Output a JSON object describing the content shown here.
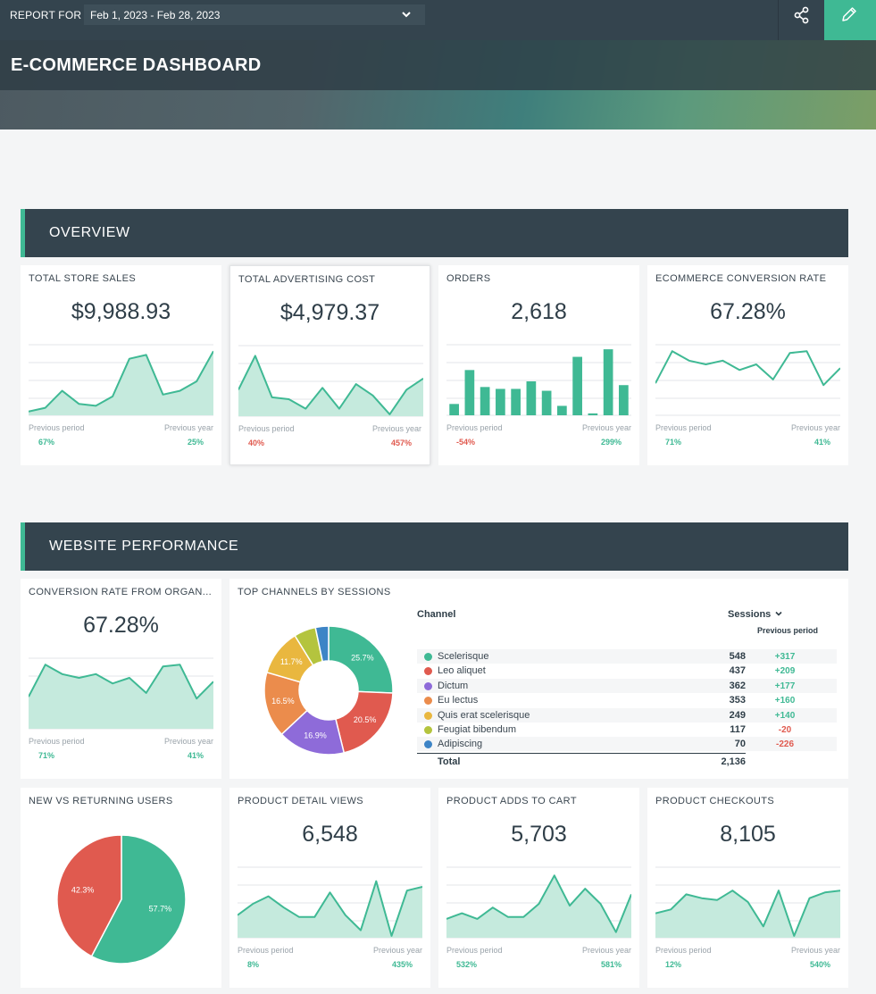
{
  "header": {
    "report_for_label": "REPORT FOR",
    "date_range": "Feb 1, 2023 - Feb 28, 2023",
    "dashboard_title": "E-COMMERCE DASHBOARD",
    "accent_color": "#3fb994",
    "header_bg_color": "#34444e"
  },
  "labels": {
    "previous_period": "Previous period",
    "previous_year": "Previous year"
  },
  "colors": {
    "positive": "#3fb994",
    "negative": "#e05a4f",
    "sparkline_fill": "#c5eadd",
    "sparkline_line": "#3fb994"
  },
  "sections": {
    "overview": "OVERVIEW",
    "website_performance": "WEBSITE PERFORMANCE"
  },
  "kpis": {
    "total_store_sales": {
      "title": "TOTAL STORE SALES",
      "value": "$9,988.93",
      "prev_period": "67%",
      "prev_year": "25%",
      "prev_period_trend": "positive",
      "prev_year_trend": "positive",
      "chart_data": {
        "type": "area",
        "values": [
          2,
          4,
          13,
          6,
          5,
          10,
          30,
          32,
          11,
          13,
          18,
          34
        ]
      }
    },
    "total_advertising_cost": {
      "title": "TOTAL ADVERTISING COST",
      "value": "$4,979.37",
      "prev_period": "40%",
      "prev_year": "457%",
      "prev_period_trend": "negative",
      "prev_year_trend": "negative",
      "chart_data": {
        "type": "area",
        "values": [
          14,
          32,
          10,
          9,
          4,
          15,
          4,
          17,
          11,
          1,
          14,
          20
        ]
      }
    },
    "orders": {
      "title": "ORDERS",
      "value": "2,618",
      "prev_period": "-54%",
      "prev_year": "299%",
      "prev_period_trend": "negative",
      "prev_year_trend": "positive",
      "chart_data": {
        "type": "bar",
        "values": [
          6,
          24,
          15,
          14,
          14,
          18,
          13,
          5,
          31,
          1,
          35,
          16
        ]
      }
    },
    "ecommerce_conversion_rate": {
      "title": "ECOMMERCE CONVERSION RATE",
      "value": "67.28%",
      "prev_period": "71%",
      "prev_year": "41%",
      "prev_period_trend": "positive",
      "prev_year_trend": "positive",
      "chart_data": {
        "type": "line",
        "values": [
          17,
          34,
          29,
          27,
          29,
          24,
          27,
          19,
          33,
          34,
          16,
          25
        ]
      }
    },
    "conversion_rate_organic": {
      "title": "CONVERSION RATE FROM ORGAN...",
      "value": "67.28%",
      "prev_period": "71%",
      "prev_year": "41%",
      "prev_period_trend": "positive",
      "prev_year_trend": "positive",
      "chart_data": {
        "type": "area",
        "values": [
          17,
          34,
          29,
          27,
          29,
          24,
          27,
          19,
          33,
          34,
          16,
          25
        ]
      }
    },
    "product_detail_views": {
      "title": "PRODUCT DETAIL VIEWS",
      "value": "6,548",
      "prev_period": "8%",
      "prev_year": "435%",
      "prev_period_trend": "positive",
      "prev_year_trend": "positive",
      "chart_data": {
        "type": "area",
        "values": [
          12,
          18,
          22,
          16,
          11,
          11,
          24,
          12,
          4,
          30,
          1,
          25,
          27
        ]
      }
    },
    "product_adds_to_cart": {
      "title": "PRODUCT ADDS TO CART",
      "value": "5,703",
      "prev_period": "532%",
      "prev_year": "581%",
      "prev_period_trend": "positive",
      "prev_year_trend": "positive",
      "chart_data": {
        "type": "area",
        "values": [
          10,
          13,
          10,
          16,
          11,
          11,
          18,
          33,
          17,
          26,
          18,
          3,
          23
        ]
      }
    },
    "product_checkouts": {
      "title": "PRODUCT CHECKOUTS",
      "value": "8,105",
      "prev_period": "12%",
      "prev_year": "540%",
      "prev_period_trend": "positive",
      "prev_year_trend": "positive",
      "chart_data": {
        "type": "area",
        "values": [
          13,
          15,
          23,
          21,
          20,
          25,
          19,
          6,
          25,
          1,
          21,
          24,
          25
        ]
      }
    }
  },
  "top_channels": {
    "title": "TOP CHANNELS BY SESSIONS",
    "col_channel": "Channel",
    "col_sessions": "Sessions",
    "col_previous_period": "Previous period",
    "total_label": "Total",
    "total": "2,136",
    "rows": [
      {
        "name": "Scelerisque",
        "sessions": "548",
        "prev": "+317",
        "trend": "positive",
        "color": "#3fb994"
      },
      {
        "name": "Leo aliquet",
        "sessions": "437",
        "prev": "+209",
        "trend": "positive",
        "color": "#e05a4f"
      },
      {
        "name": "Dictum",
        "sessions": "362",
        "prev": "+177",
        "trend": "positive",
        "color": "#8e6bd9"
      },
      {
        "name": "Eu lectus",
        "sessions": "353",
        "prev": "+160",
        "trend": "positive",
        "color": "#eb8c4c"
      },
      {
        "name": "Quis erat scelerisque",
        "sessions": "249",
        "prev": "+140",
        "trend": "positive",
        "color": "#e9b73f"
      },
      {
        "name": "Feugiat bibendum",
        "sessions": "117",
        "prev": "-20",
        "trend": "negative",
        "color": "#b4c43e"
      },
      {
        "name": "Adipiscing",
        "sessions": "70",
        "prev": "-226",
        "trend": "negative",
        "color": "#3d84c6"
      }
    ],
    "chart_data": {
      "type": "pie",
      "donut": true,
      "slices": [
        {
          "name": "Scelerisque",
          "value": 25.7,
          "label": "25.7%"
        },
        {
          "name": "Leo aliquet",
          "value": 20.5,
          "label": "20.5%"
        },
        {
          "name": "Dictum",
          "value": 16.9,
          "label": "16.9%"
        },
        {
          "name": "Eu lectus",
          "value": 16.5,
          "label": "16.5%"
        },
        {
          "name": "Quis erat scelerisque",
          "value": 11.7,
          "label": "11.7%"
        },
        {
          "name": "Feugiat bibendum",
          "value": 5.5,
          "label": ""
        },
        {
          "name": "Adipiscing",
          "value": 3.3,
          "label": ""
        }
      ]
    }
  },
  "new_vs_returning": {
    "title": "NEW VS RETURNING USERS",
    "chart_data": {
      "type": "pie",
      "donut": false,
      "slices": [
        {
          "value": 57.7,
          "label": "57.7%",
          "color": "#3fb994"
        },
        {
          "value": 42.3,
          "label": "42.3%",
          "color": "#e05a4f"
        }
      ]
    }
  }
}
